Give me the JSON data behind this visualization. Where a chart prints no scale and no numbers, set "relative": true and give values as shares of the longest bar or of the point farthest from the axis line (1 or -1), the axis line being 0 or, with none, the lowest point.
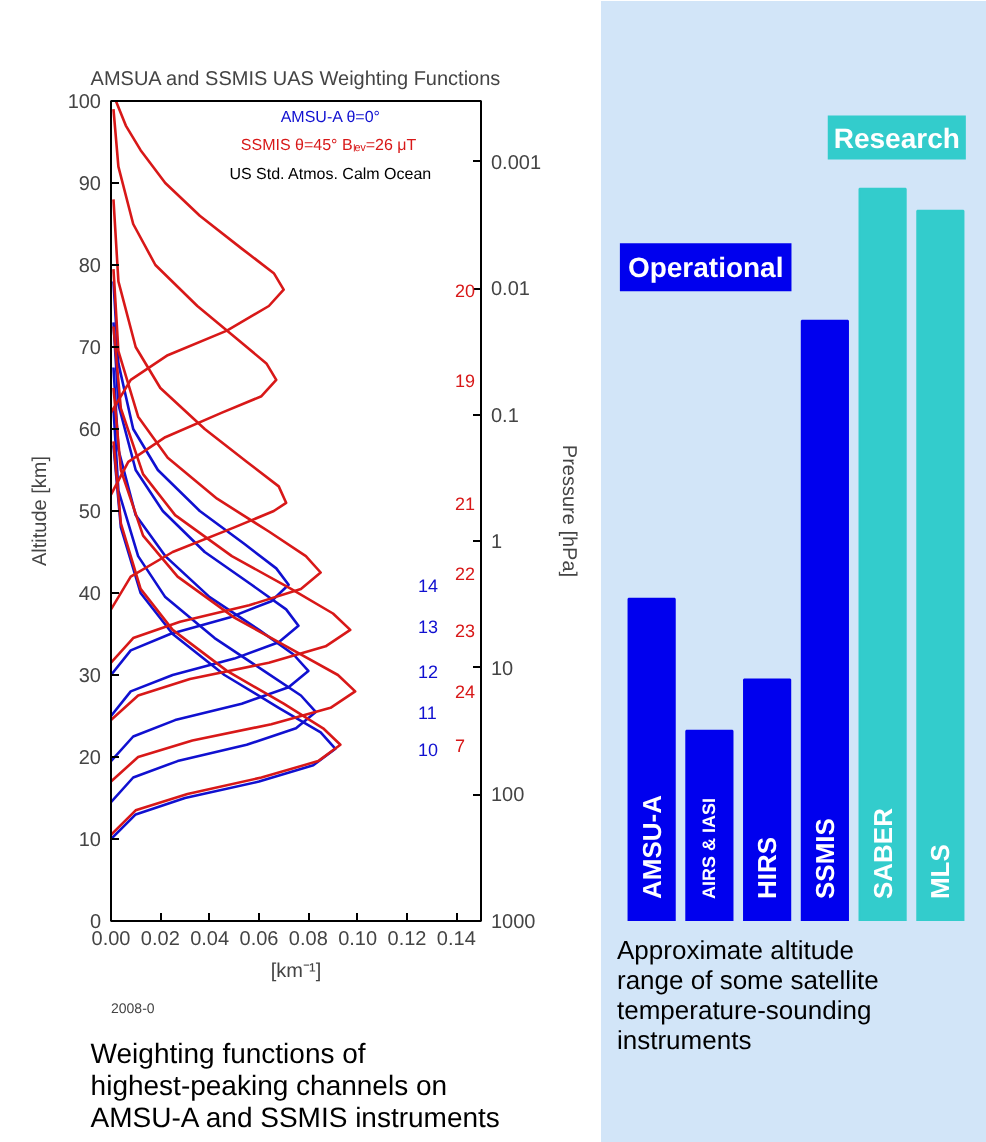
{
  "chart_data": [
    {
      "type": "line",
      "title": "AMSUA and SSMIS UAS Weighting Functions",
      "xlabel": "[km⁻¹]",
      "ylabel": "Altitude [km]",
      "y2label": "Pressure [hPa]",
      "xlim": [
        0,
        0.15
      ],
      "ylim": [
        0,
        100
      ],
      "y2lim": [
        1000,
        0.00033
      ],
      "log": "y2",
      "grid": false,
      "line_style": "solid",
      "marker": "none",
      "xticks": [
        {
          "value": 0,
          "label": "0.00"
        },
        {
          "value": 0.02,
          "label": "0.02"
        },
        {
          "value": 0.04,
          "label": "0.04"
        },
        {
          "value": 0.06,
          "label": "0.06"
        },
        {
          "value": 0.08,
          "label": "0.08"
        },
        {
          "value": 0.1,
          "label": "0.10"
        },
        {
          "value": 0.12,
          "label": "0.12"
        },
        {
          "value": 0.14,
          "label": "0.14"
        }
      ],
      "yticks": [
        0,
        10,
        20,
        30,
        40,
        50,
        60,
        70,
        80,
        90,
        100
      ],
      "y2ticks": [
        1000,
        100,
        10,
        1,
        0.1,
        0.01,
        0.001
      ],
      "annotations": [
        "AMSU-A  θ=0°",
        "SSMIS  θ=45°  Bₗₑᵥ=26 μT",
        "US Std. Atmos.  Calm Ocean",
        "2008-0",
        "Weighting functions of highest-peaking channels on AMSU-A and SSMIS instruments"
      ],
      "series": [
        {
          "name": "10",
          "color": "#1010d0",
          "x": [
            0,
            0.01,
            0.03,
            0.06,
            0.082,
            0.091,
            0.085,
            0.068,
            0.046,
            0.025,
            0.012,
            0.004,
            0.001
          ],
          "values": [
            10,
            13,
            15,
            17,
            19,
            21,
            23,
            26,
            30,
            35,
            40,
            48,
            58
          ]
        },
        {
          "name": "11",
          "color": "#1010d0",
          "x": [
            0,
            0.009,
            0.027,
            0.055,
            0.075,
            0.083,
            0.077,
            0.062,
            0.042,
            0.022,
            0.011,
            0.003,
            0.001
          ],
          "values": [
            14.5,
            17.5,
            19.5,
            21.5,
            23.5,
            25.5,
            27.5,
            30.5,
            34.5,
            39.5,
            44.5,
            52.5,
            62.5
          ]
        },
        {
          "name": "12",
          "color": "#1010d0",
          "x": [
            0,
            0.009,
            0.026,
            0.053,
            0.072,
            0.08,
            0.074,
            0.06,
            0.04,
            0.022,
            0.01,
            0.003,
            0.001
          ],
          "values": [
            19.5,
            22.5,
            24.5,
            26.5,
            28.5,
            30.5,
            32.5,
            35.5,
            39.5,
            44.5,
            49.5,
            57.5,
            67.5
          ]
        },
        {
          "name": "13",
          "color": "#1010d0",
          "x": [
            0,
            0.008,
            0.025,
            0.05,
            0.068,
            0.076,
            0.071,
            0.057,
            0.038,
            0.021,
            0.01,
            0.003,
            0.001
          ],
          "values": [
            25,
            28,
            30,
            32,
            34,
            36,
            38,
            41,
            45,
            50,
            55,
            63,
            73
          ]
        },
        {
          "name": "14",
          "color": "#1010d0",
          "x": [
            0,
            0.008,
            0.024,
            0.048,
            0.065,
            0.072,
            0.067,
            0.054,
            0.036,
            0.019,
            0.009,
            0.003,
            0.001
          ],
          "values": [
            30,
            33,
            35,
            37,
            39,
            41,
            43,
            46,
            50,
            55,
            60,
            68,
            78
          ]
        },
        {
          "name": "7",
          "color": "#d81818",
          "x": [
            0,
            0.01,
            0.031,
            0.061,
            0.084,
            0.093,
            0.086,
            0.07,
            0.047,
            0.025,
            0.012,
            0.004,
            0.001
          ],
          "values": [
            10.5,
            13.5,
            15.5,
            17.5,
            19.5,
            21.5,
            23.5,
            26.5,
            30.5,
            35.5,
            40.5,
            48.5,
            58.5
          ]
        },
        {
          "name": "24",
          "color": "#d81818",
          "x": [
            0,
            0.011,
            0.033,
            0.065,
            0.089,
            0.099,
            0.092,
            0.074,
            0.05,
            0.027,
            0.013,
            0.004,
            0.001
          ],
          "values": [
            17,
            20,
            22,
            24,
            26,
            28,
            30,
            33,
            37,
            42,
            47,
            55,
            65
          ]
        },
        {
          "name": "23",
          "color": "#d81818",
          "x": [
            0,
            0.011,
            0.032,
            0.064,
            0.087,
            0.097,
            0.09,
            0.073,
            0.049,
            0.026,
            0.013,
            0.004,
            0.001
          ],
          "values": [
            24.5,
            27.5,
            29.5,
            31.5,
            33.5,
            35.5,
            37.5,
            40.5,
            44.5,
            49.5,
            54.5,
            62.5,
            72.5
          ]
        },
        {
          "name": "22",
          "color": "#d81818",
          "x": [
            0,
            0.009,
            0.028,
            0.056,
            0.077,
            0.085,
            0.079,
            0.064,
            0.043,
            0.023,
            0.011,
            0.003,
            0.001
          ],
          "values": [
            31.5,
            34.5,
            36.5,
            38.5,
            40.5,
            42.5,
            44.5,
            47.5,
            51.5,
            56.5,
            61.5,
            69.5,
            79.5
          ]
        },
        {
          "name": "21",
          "color": "#d81818",
          "x": [
            0,
            0.008,
            0.025,
            0.05,
            0.066,
            0.071,
            0.068,
            0.055,
            0.038,
            0.02,
            0.01,
            0.003,
            0.001
          ],
          "values": [
            38,
            42,
            45,
            48,
            50,
            51,
            53,
            56,
            60,
            65,
            70,
            78,
            88
          ]
        },
        {
          "name": "19",
          "color": "#d81818",
          "x": [
            0,
            0.007,
            0.022,
            0.045,
            0.061,
            0.067,
            0.063,
            0.051,
            0.035,
            0.018,
            0.009,
            0.003,
            0.001
          ],
          "values": [
            52,
            56,
            59,
            62,
            64,
            66,
            68,
            71,
            75,
            80,
            85,
            92,
            99
          ]
        },
        {
          "name": "20",
          "color": "#d81818",
          "x": [
            0,
            0.008,
            0.023,
            0.047,
            0.064,
            0.07,
            0.066,
            0.053,
            0.036,
            0.022,
            0.012,
            0.006,
            0.002
          ],
          "values": [
            62,
            66,
            69,
            72,
            75,
            77,
            79,
            82,
            86,
            90,
            94,
            97,
            100
          ]
        }
      ]
    },
    {
      "type": "bar",
      "relative": true,
      "grid": false,
      "categories": [
        "AMSU-A",
        "AIRS & IASI",
        "HIRS",
        "SSMIS",
        "SABER",
        "MLS"
      ],
      "values": [
        0.44,
        0.26,
        0.33,
        0.82,
        1,
        0.97
      ],
      "colors": [
        "#0000ee",
        "#0000ee",
        "#0000ee",
        "#0000ee",
        "#33cccc",
        "#33cccc"
      ],
      "annotations": [
        "Operational",
        "Research",
        "Approximate altitude range of some satellite temperature-sounding instruments"
      ]
    }
  ]
}
